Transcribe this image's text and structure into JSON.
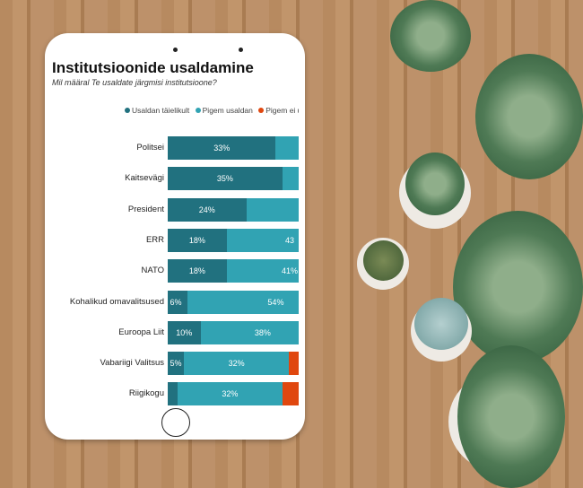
{
  "chart_data": {
    "type": "bar",
    "orientation": "horizontal",
    "stacked": true,
    "title": "Institutsioonide usaldamine",
    "subtitle": "Mil määral Te usaldate järgmisi institutsioone?",
    "categories": [
      "Politsei",
      "Kaitsevägi",
      "President",
      "ERR",
      "NATO",
      "Kohalikud omavalitsused",
      "Euroopa Liit",
      "Vabariigi Valitsus",
      "Riigikogu"
    ],
    "series": [
      {
        "name": "Usaldan täielikult",
        "color": "#21717f",
        "values": [
          33,
          35,
          24,
          18,
          18,
          6,
          10,
          5,
          3
        ],
        "labels": [
          "33%",
          "35%",
          "24%",
          "18%",
          "18%",
          "6%",
          "10%",
          "5%",
          ""
        ]
      },
      {
        "name": "Pigem usaldan",
        "color": "#31a3b3",
        "values": [
          null,
          null,
          null,
          43,
          41,
          54,
          38,
          32,
          32
        ],
        "labels": [
          "",
          "",
          "",
          "43",
          "41%",
          "54%",
          "38%",
          "32%",
          "32%"
        ]
      },
      {
        "name": "Pigem ei us",
        "color": "#e0470f",
        "values": [
          null,
          null,
          null,
          null,
          null,
          null,
          null,
          null,
          null
        ]
      }
    ],
    "legend": "top",
    "unit": "%"
  }
}
